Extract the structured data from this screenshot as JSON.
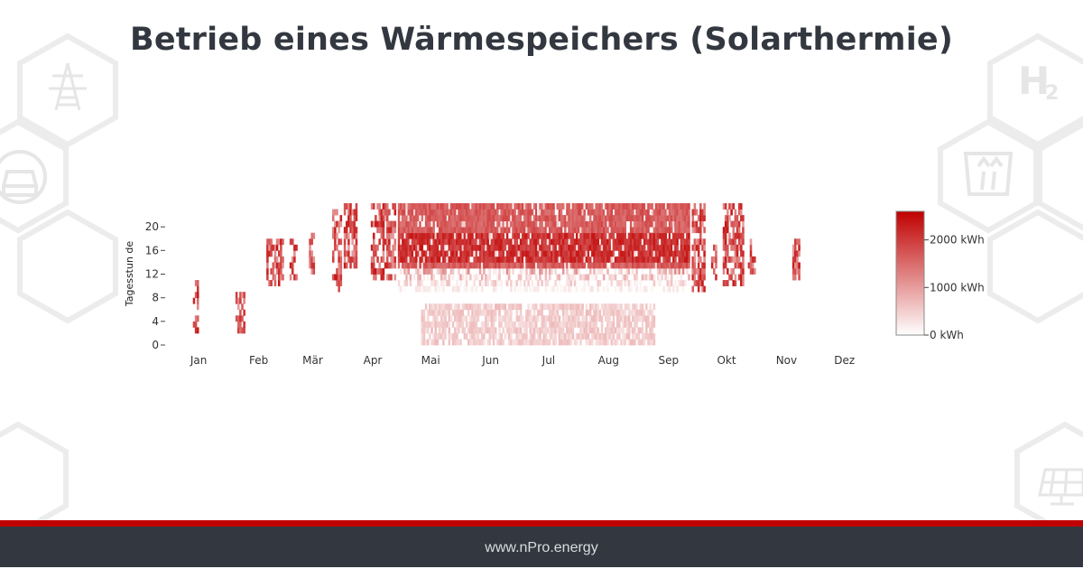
{
  "title": "Betrieb eines Wärmespeichers (Solarthermie)",
  "footer": "www.nPro.energy",
  "colors": {
    "accent": "#c00000",
    "footer_bg": "#333840",
    "title": "#333840",
    "heat_max": "#c00000",
    "heat_min": "#ffffff"
  },
  "background_icons": [
    "power-pylon-icon",
    "car-charging-icon",
    "hydrogen-h2-icon",
    "road-icon",
    "solar-panel-icon"
  ],
  "chart_data": {
    "type": "heatmap",
    "title": "",
    "xlabel": "",
    "ylabel": "Tagesstun de",
    "x_months": [
      "Jan",
      "Feb",
      "Mär",
      "Apr",
      "Mai",
      "Jun",
      "Jul",
      "Aug",
      "Sep",
      "Okt",
      "Nov",
      "Dez"
    ],
    "x_range_days": [
      0,
      365
    ],
    "y_ticks": [
      0,
      4,
      8,
      12,
      16,
      20
    ],
    "y_range": [
      0,
      24
    ],
    "colorbar": {
      "ticks": [
        "0 kWh",
        "1000 kWh",
        "2000 kWh"
      ],
      "range": [
        0,
        2600
      ]
    },
    "value_profile_description_kWh": {
      "note": "daily stored energy by hour; peak ~2000-2600 kWh in afternoon/evening hours (13-24) from May to September, lower (~300-800 kWh) in night hours 0-6 during summer, sparse events in Jan, Feb, Mar, Apr, Oct, Nov"
    }
  }
}
